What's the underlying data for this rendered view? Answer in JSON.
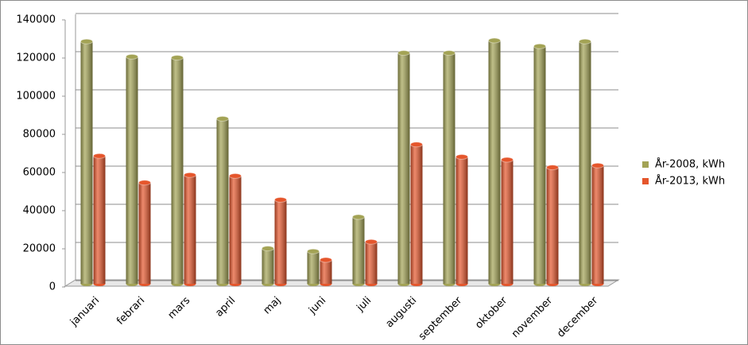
{
  "chart_data": {
    "type": "bar",
    "categories": [
      "januari",
      "febrari",
      "mars",
      "april",
      "maj",
      "juni",
      "juli",
      "augusti",
      "september",
      "oktober",
      "november",
      "december"
    ],
    "series": [
      {
        "name": "År-2008, kWh",
        "color": "#a3a355",
        "values": [
          127000,
          119000,
          118500,
          86500,
          18500,
          17000,
          35000,
          121000,
          121000,
          127500,
          124500,
          127000
        ]
      },
      {
        "name": "År-2013, kWh",
        "color": "#e5562c",
        "values": [
          67000,
          53000,
          57000,
          56500,
          44000,
          12500,
          22000,
          73000,
          66500,
          65000,
          61000,
          62000
        ]
      }
    ],
    "ylim": [
      0,
      140000
    ],
    "yticks": [
      0,
      20000,
      40000,
      60000,
      80000,
      100000,
      120000,
      140000
    ],
    "grid": true,
    "legend": "right"
  }
}
